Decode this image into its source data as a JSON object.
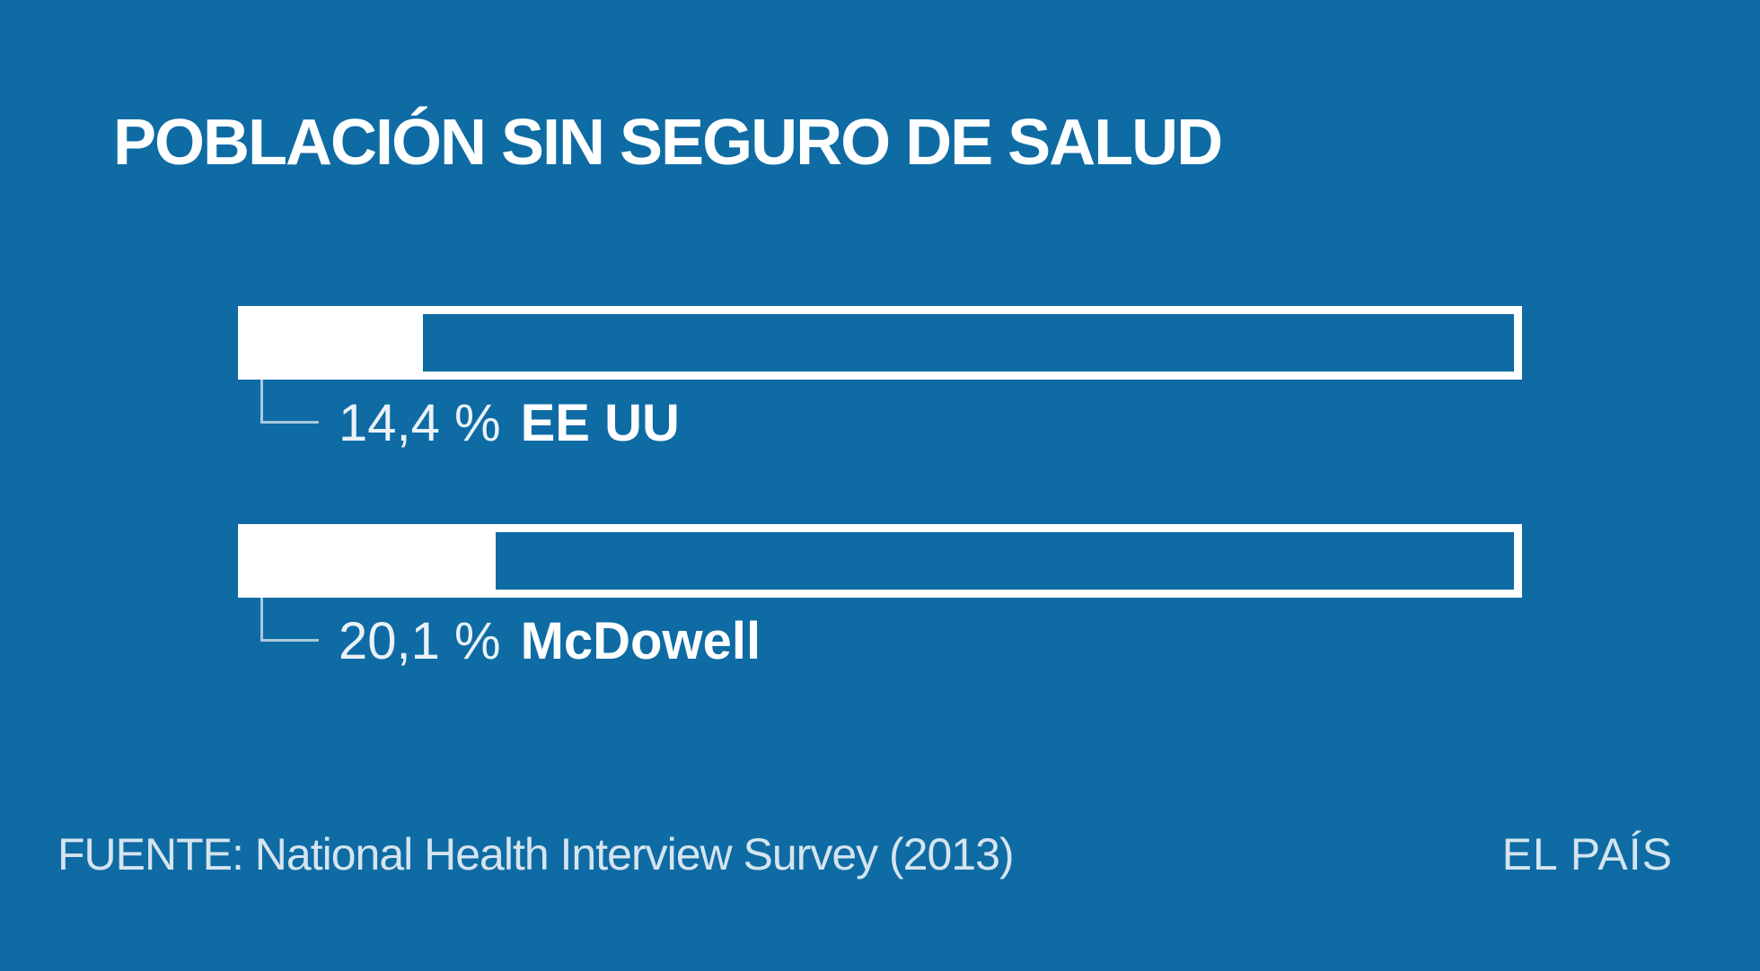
{
  "title": "POBLACIÓN SIN SEGURO DE SALUD",
  "chart_data": {
    "type": "bar",
    "orientation": "horizontal",
    "title": "POBLACIÓN SIN SEGURO DE SALUD",
    "categories": [
      "EE UU",
      "McDowell"
    ],
    "values": [
      14.4,
      20.1
    ],
    "unit": "%",
    "xlim": [
      0,
      100
    ],
    "grid": false,
    "legend": "none",
    "bars": [
      {
        "name": "EE UU",
        "value": 14.4,
        "pct": 14.4,
        "value_label": "14,4 %"
      },
      {
        "name": "McDowell",
        "value": 20.1,
        "pct": 20.1,
        "value_label": "20,1 %"
      }
    ],
    "source": "FUENTE: National Health Interview Survey (2013)"
  },
  "footer": {
    "source": "FUENTE: National Health Interview Survey (2013)",
    "brand": "EL PAÍS"
  },
  "colors": {
    "background": "#0E6BA4",
    "bar_fill": "#FFFFFF",
    "bar_outline": "#FFFFFF",
    "connector": "#A9C9DE",
    "title_text": "#FFFFFF",
    "footer_text": "#D5E4EF"
  }
}
